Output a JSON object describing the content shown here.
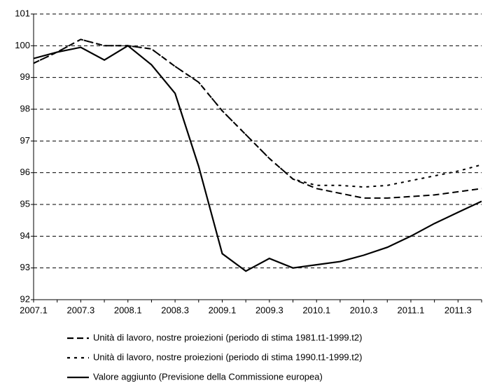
{
  "chart_data": {
    "type": "line",
    "categories": [
      "2007.1",
      null,
      "2007.3",
      null,
      "2008.1",
      null,
      "2008.3",
      null,
      "2009.1",
      null,
      "2009.3",
      null,
      "2010.1",
      null,
      "2010.3",
      null,
      "2011.1",
      null,
      "2011.3",
      null
    ],
    "series": [
      {
        "name": "Unità di lavoro, nostre proiezioni (periodo di stima 1981.t1-1999.t2)",
        "color": "#000000",
        "style": "dashed",
        "values": [
          99.45,
          99.8,
          100.2,
          100.0,
          100.0,
          99.9,
          99.35,
          98.85,
          97.95,
          97.2,
          96.45,
          95.8,
          95.5,
          95.35,
          95.2,
          95.2,
          95.25,
          95.3,
          95.4,
          95.5
        ]
      },
      {
        "name": "Unità di lavoro, nostre proiezioni (periodo di stima 1990.t1-1999.t2)",
        "color": "#000000",
        "style": "dotted",
        "values": [
          99.45,
          99.8,
          100.2,
          100.0,
          100.0,
          99.9,
          99.35,
          98.85,
          97.95,
          97.2,
          96.45,
          95.8,
          95.6,
          95.6,
          95.55,
          95.6,
          95.75,
          95.9,
          96.05,
          96.25
        ]
      },
      {
        "name": "Valore aggiunto (Previsione della Commissione europea)",
        "color": "#000000",
        "style": "solid",
        "values": [
          99.6,
          99.8,
          99.95,
          99.55,
          100.0,
          99.4,
          98.5,
          96.2,
          93.45,
          92.9,
          93.3,
          93.0,
          93.1,
          93.2,
          93.4,
          93.65,
          94.0,
          94.4,
          94.75,
          95.1
        ]
      }
    ],
    "ylim": [
      92,
      101
    ],
    "yticks": [
      92,
      93,
      94,
      95,
      96,
      97,
      98,
      99,
      100,
      101
    ],
    "grid": true,
    "legend": "bottom"
  }
}
